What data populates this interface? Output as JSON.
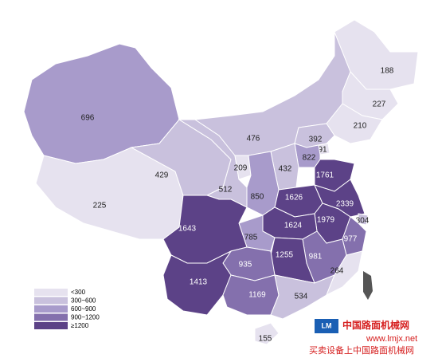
{
  "regions": [
    {
      "value": 696,
      "color": "#a89bcb"
    },
    {
      "value": 225,
      "color": "#e6e2ef"
    },
    {
      "value": 429,
      "color": "#c9c1dd"
    },
    {
      "value": 512,
      "color": "#c9c1dd"
    },
    {
      "value": 209,
      "color": "#e6e2ef"
    },
    {
      "value": 476,
      "color": "#c9c1dd"
    },
    {
      "value": 188,
      "color": "#e6e2ef"
    },
    {
      "value": 227,
      "color": "#e6e2ef"
    },
    {
      "value": 210,
      "color": "#e6e2ef"
    },
    {
      "value": 392,
      "color": "#c9c1dd"
    },
    {
      "value": 91,
      "color": "#e6e2ef"
    },
    {
      "value": 822,
      "color": "#a89bcb"
    },
    {
      "value": 432,
      "color": "#c9c1dd"
    },
    {
      "value": 850,
      "color": "#a89bcb"
    },
    {
      "value": 1761,
      "color": "#5c4287"
    },
    {
      "value": 1626,
      "color": "#5c4287"
    },
    {
      "value": 2339,
      "color": "#5c4287"
    },
    {
      "value": 304,
      "color": "#c9c1dd"
    },
    {
      "value": 1979,
      "color": "#5c4287"
    },
    {
      "value": 1624,
      "color": "#5c4287"
    },
    {
      "value": 977,
      "color": "#8470ad"
    },
    {
      "value": 981,
      "color": "#8470ad"
    },
    {
      "value": 1255,
      "color": "#5c4287"
    },
    {
      "value": 785,
      "color": "#a89bcb"
    },
    {
      "value": 1643,
      "color": "#5c4287"
    },
    {
      "value": 935,
      "color": "#8470ad"
    },
    {
      "value": 1413,
      "color": "#5c4287"
    },
    {
      "value": 1169,
      "color": "#8470ad"
    },
    {
      "value": 534,
      "color": "#c9c1dd"
    },
    {
      "value": 264,
      "color": "#e6e2ef"
    },
    {
      "value": 155,
      "color": "#e6e2ef"
    }
  ],
  "legend": [
    {
      "label": "<300",
      "color": "#e6e2ef"
    },
    {
      "label": "300~600",
      "color": "#c9c1dd"
    },
    {
      "label": "600~900",
      "color": "#a89bcb"
    },
    {
      "label": "900~1200",
      "color": "#8470ad"
    },
    {
      "label": "≥1200",
      "color": "#5c4287"
    }
  ],
  "watermark": {
    "name": "中国路面机械网",
    "url": "www.lmjx.net",
    "slogan": "买卖设备上中国路面机械网"
  }
}
